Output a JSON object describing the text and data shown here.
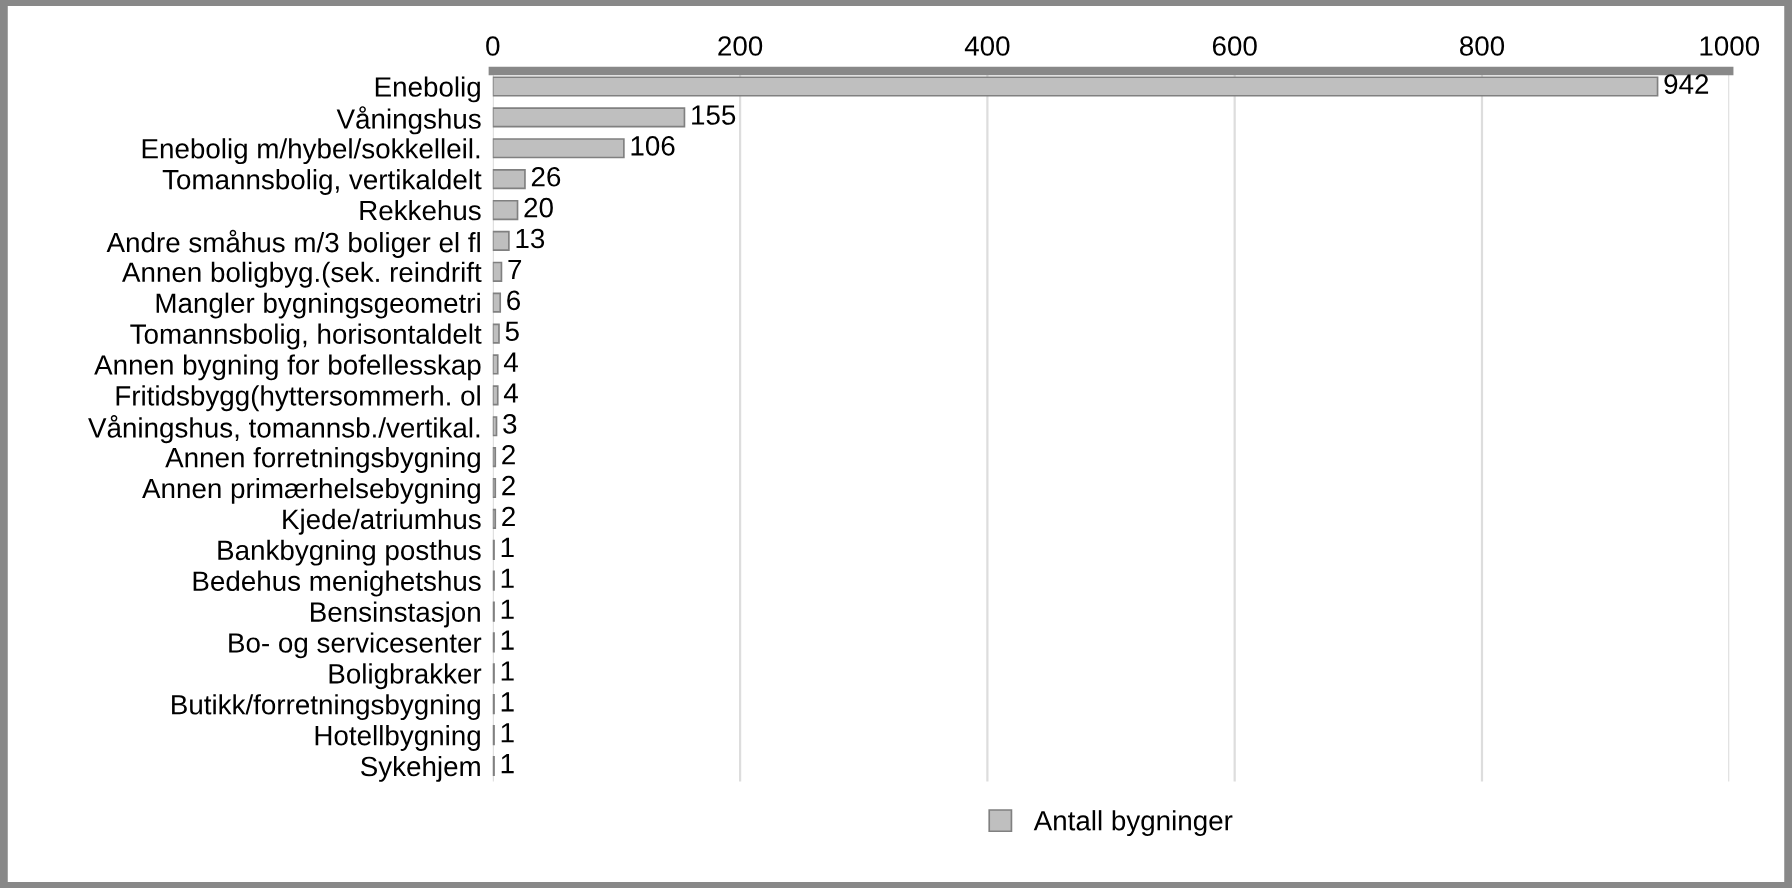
{
  "chart_data": {
    "type": "bar",
    "orientation": "horizontal",
    "categories": [
      "Enebolig",
      "Våningshus",
      "Enebolig m/hybel/sokkelleil.",
      "Tomannsbolig, vertikaldelt",
      "Rekkehus",
      "Andre småhus m/3 boliger el fl",
      "Annen boligbyg.(sek. reindrift",
      "Mangler bygningsgeometri",
      "Tomannsbolig, horisontaldelt",
      "Annen bygning for bofellesskap",
      "Fritidsbygg(hyttersommerh. ol",
      "Våningshus, tomannsb./vertikal.",
      "Annen forretningsbygning",
      "Annen primærhelsebygning",
      "Kjede/atriumhus",
      "Bankbygning posthus",
      "Bedehus menighetshus",
      "Bensinstasjon",
      "Bo- og servicesenter",
      "Boligbrakker",
      "Butikk/forretningsbygning",
      "Hotellbygning",
      "Sykehjem"
    ],
    "series": [
      {
        "name": "Antall bygninger",
        "color": "#bfbfbf",
        "values": [
          942,
          155,
          106,
          26,
          20,
          13,
          7,
          6,
          5,
          4,
          4,
          3,
          2,
          2,
          2,
          1,
          1,
          1,
          1,
          1,
          1,
          1,
          1
        ]
      }
    ],
    "xlim": [
      0,
      1000
    ],
    "xticks": [
      0,
      200,
      400,
      600,
      800,
      1000
    ],
    "grid": "x",
    "legend": "bottom",
    "data_labels": true
  }
}
